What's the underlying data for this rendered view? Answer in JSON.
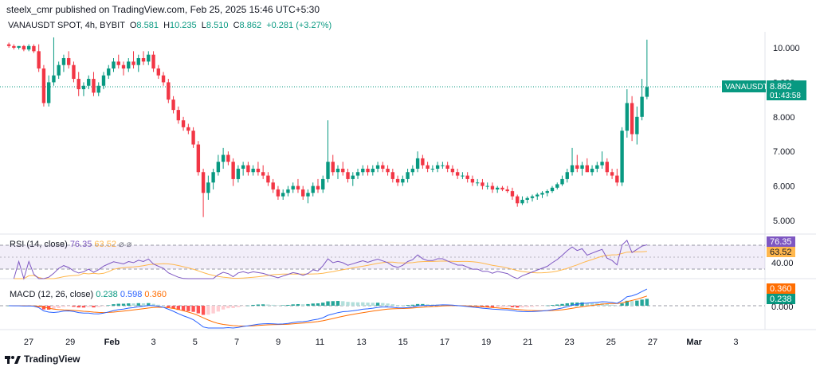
{
  "header": {
    "published": "steelx_cmr published on TradingView.com, Feb 25, 2025 15:46 UTC+5:30"
  },
  "legend": {
    "symbol": "VANAUSDT SPOT, 4h, BYBIT",
    "o_label": "O",
    "o": "8.581",
    "h_label": "H",
    "h": "10.235",
    "l_label": "L",
    "l": "8.510",
    "c_label": "C",
    "c": "8.862",
    "change": "+0.281 (+3.27%)"
  },
  "price_tag": {
    "symbol": "VANAUSDT",
    "price": "8.862",
    "countdown": "01:43:58"
  },
  "rsi": {
    "label": "RSI (14, close)",
    "value": "76.35",
    "ma": "63.52",
    "level_label": "40.00",
    "settings_glyph": "⌀ ⌀"
  },
  "macd": {
    "label": "MACD (12, 26, close)",
    "hist": "0.238",
    "macd": "0.598",
    "signal": "0.360",
    "zero_label": "0.000"
  },
  "footer": {
    "brand": "TradingView",
    "logo_icon": "tradingview-logo"
  },
  "colors": {
    "up": "#089981",
    "down": "#f23645",
    "rsi": "#7e57c2",
    "rsi_ma": "#ffb74d",
    "macd": "#2962ff",
    "signal": "#ff6d00"
  },
  "chart_data": {
    "type": "candlestick",
    "timeframe": "4h",
    "y_axis_ticks": [
      "10.000",
      "9.000",
      "8.000",
      "7.000",
      "6.000",
      "5.000"
    ],
    "y_range": [
      4.7,
      10.5
    ],
    "x_axis_ticks": [
      "27",
      "29",
      "Feb",
      "3",
      "5",
      "7",
      "9",
      "11",
      "13",
      "15",
      "17",
      "19",
      "21",
      "23",
      "25",
      "27",
      "Mar",
      "3"
    ],
    "candles": [
      [
        10.1,
        10.15,
        10.0,
        10.05
      ],
      [
        10.05,
        10.1,
        9.95,
        10.0
      ],
      [
        10.0,
        10.05,
        9.95,
        10.05
      ],
      [
        10.05,
        10.08,
        9.9,
        9.95
      ],
      [
        9.95,
        10.1,
        9.9,
        10.05
      ],
      [
        10.05,
        10.1,
        9.85,
        9.9
      ],
      [
        9.9,
        10.1,
        9.3,
        9.4
      ],
      [
        9.4,
        9.5,
        8.3,
        8.4
      ],
      [
        8.4,
        9.2,
        8.3,
        9.0
      ],
      [
        9.0,
        10.3,
        8.9,
        9.2
      ],
      [
        9.2,
        9.6,
        9.1,
        9.5
      ],
      [
        9.5,
        9.8,
        9.3,
        9.7
      ],
      [
        9.7,
        9.9,
        9.4,
        9.5
      ],
      [
        9.5,
        9.6,
        9.0,
        9.1
      ],
      [
        9.1,
        9.3,
        8.6,
        8.8
      ],
      [
        8.8,
        9.0,
        8.6,
        8.9
      ],
      [
        8.9,
        9.2,
        8.8,
        9.1
      ],
      [
        9.1,
        9.3,
        8.6,
        8.7
      ],
      [
        8.7,
        9.0,
        8.6,
        8.9
      ],
      [
        8.9,
        9.3,
        8.8,
        9.2
      ],
      [
        9.2,
        9.5,
        9.1,
        9.4
      ],
      [
        9.4,
        9.7,
        9.3,
        9.6
      ],
      [
        9.6,
        9.8,
        9.4,
        9.5
      ],
      [
        9.5,
        9.6,
        9.2,
        9.4
      ],
      [
        9.4,
        9.7,
        9.3,
        9.6
      ],
      [
        9.6,
        9.9,
        9.4,
        9.5
      ],
      [
        9.5,
        9.8,
        9.3,
        9.7
      ],
      [
        9.7,
        9.9,
        9.5,
        9.6
      ],
      [
        9.6,
        9.9,
        9.5,
        9.8
      ],
      [
        9.8,
        9.9,
        9.3,
        9.4
      ],
      [
        9.4,
        9.5,
        9.1,
        9.2
      ],
      [
        9.2,
        9.3,
        8.9,
        9.0
      ],
      [
        9.0,
        9.1,
        8.4,
        8.5
      ],
      [
        8.5,
        8.6,
        8.1,
        8.2
      ],
      [
        8.2,
        8.3,
        7.8,
        7.9
      ],
      [
        7.9,
        8.0,
        7.6,
        7.7
      ],
      [
        7.7,
        7.8,
        7.5,
        7.6
      ],
      [
        7.6,
        7.7,
        7.1,
        7.2
      ],
      [
        7.2,
        7.3,
        6.3,
        6.4
      ],
      [
        6.4,
        6.5,
        5.1,
        5.8
      ],
      [
        5.8,
        6.3,
        5.6,
        6.1
      ],
      [
        6.1,
        6.5,
        5.9,
        6.4
      ],
      [
        6.4,
        6.9,
        6.3,
        6.7
      ],
      [
        6.7,
        7.1,
        6.5,
        6.9
      ],
      [
        6.9,
        7.0,
        6.6,
        6.7
      ],
      [
        6.7,
        6.8,
        6.0,
        6.2
      ],
      [
        6.2,
        6.6,
        6.1,
        6.5
      ],
      [
        6.5,
        6.7,
        6.3,
        6.6
      ],
      [
        6.6,
        6.7,
        6.3,
        6.4
      ],
      [
        6.4,
        6.6,
        6.3,
        6.5
      ],
      [
        6.5,
        6.7,
        6.3,
        6.4
      ],
      [
        6.4,
        6.6,
        6.2,
        6.3
      ],
      [
        6.3,
        6.4,
        6.0,
        6.1
      ],
      [
        6.1,
        6.2,
        5.8,
        5.9
      ],
      [
        5.9,
        6.0,
        5.6,
        5.7
      ],
      [
        5.7,
        5.9,
        5.6,
        5.8
      ],
      [
        5.8,
        6.0,
        5.7,
        5.9
      ],
      [
        5.9,
        6.1,
        5.8,
        6.0
      ],
      [
        6.0,
        6.2,
        5.8,
        5.9
      ],
      [
        5.9,
        6.0,
        5.6,
        5.7
      ],
      [
        5.7,
        5.9,
        5.5,
        5.8
      ],
      [
        5.8,
        6.1,
        5.7,
        6.0
      ],
      [
        6.0,
        6.2,
        5.8,
        5.9
      ],
      [
        5.9,
        6.3,
        5.8,
        6.2
      ],
      [
        6.2,
        7.9,
        6.1,
        6.7
      ],
      [
        6.7,
        6.9,
        6.3,
        6.4
      ],
      [
        6.4,
        6.6,
        6.2,
        6.5
      ],
      [
        6.5,
        6.7,
        6.3,
        6.4
      ],
      [
        6.4,
        6.5,
        6.1,
        6.2
      ],
      [
        6.2,
        6.4,
        6.0,
        6.3
      ],
      [
        6.3,
        6.5,
        6.2,
        6.4
      ],
      [
        6.4,
        6.6,
        6.3,
        6.5
      ],
      [
        6.5,
        6.6,
        6.3,
        6.4
      ],
      [
        6.4,
        6.6,
        6.3,
        6.5
      ],
      [
        6.5,
        6.7,
        6.4,
        6.6
      ],
      [
        6.6,
        6.7,
        6.4,
        6.5
      ],
      [
        6.5,
        6.6,
        6.3,
        6.4
      ],
      [
        6.4,
        6.5,
        6.1,
        6.2
      ],
      [
        6.2,
        6.3,
        6.0,
        6.1
      ],
      [
        6.1,
        6.3,
        6.0,
        6.2
      ],
      [
        6.2,
        6.5,
        6.1,
        6.4
      ],
      [
        6.4,
        6.6,
        6.3,
        6.5
      ],
      [
        6.5,
        7.0,
        6.4,
        6.8
      ],
      [
        6.8,
        6.9,
        6.5,
        6.6
      ],
      [
        6.6,
        6.7,
        6.4,
        6.5
      ],
      [
        6.5,
        6.6,
        6.4,
        6.5
      ],
      [
        6.5,
        6.7,
        6.4,
        6.6
      ],
      [
        6.6,
        6.7,
        6.5,
        6.6
      ],
      [
        6.6,
        6.7,
        6.4,
        6.5
      ],
      [
        6.5,
        6.6,
        6.3,
        6.4
      ],
      [
        6.4,
        6.5,
        6.2,
        6.3
      ],
      [
        6.3,
        6.4,
        6.2,
        6.3
      ],
      [
        6.3,
        6.4,
        6.1,
        6.2
      ],
      [
        6.2,
        6.3,
        6.0,
        6.1
      ],
      [
        6.1,
        6.2,
        6.0,
        6.1
      ],
      [
        6.1,
        6.2,
        5.9,
        6.0
      ],
      [
        6.0,
        6.1,
        5.9,
        6.0
      ],
      [
        6.0,
        6.1,
        5.8,
        5.9
      ],
      [
        5.9,
        6.0,
        5.8,
        5.95
      ],
      [
        5.95,
        6.0,
        5.85,
        5.9
      ],
      [
        5.9,
        6.0,
        5.8,
        5.85
      ],
      [
        5.85,
        5.95,
        5.6,
        5.7
      ],
      [
        5.7,
        5.75,
        5.4,
        5.5
      ],
      [
        5.5,
        5.7,
        5.45,
        5.6
      ],
      [
        5.6,
        5.7,
        5.5,
        5.65
      ],
      [
        5.65,
        5.75,
        5.55,
        5.7
      ],
      [
        5.7,
        5.8,
        5.6,
        5.75
      ],
      [
        5.75,
        5.85,
        5.65,
        5.8
      ],
      [
        5.8,
        5.9,
        5.7,
        5.85
      ],
      [
        5.85,
        6.0,
        5.8,
        5.95
      ],
      [
        5.95,
        6.1,
        5.9,
        6.05
      ],
      [
        6.05,
        6.3,
        6.0,
        6.2
      ],
      [
        6.2,
        6.5,
        6.1,
        6.4
      ],
      [
        6.4,
        7.1,
        6.3,
        6.6
      ],
      [
        6.6,
        6.9,
        6.4,
        6.5
      ],
      [
        6.5,
        6.7,
        6.3,
        6.6
      ],
      [
        6.6,
        6.8,
        6.4,
        6.4
      ],
      [
        6.4,
        6.6,
        6.3,
        6.5
      ],
      [
        6.5,
        6.7,
        6.4,
        6.6
      ],
      [
        6.6,
        7.0,
        6.5,
        6.7
      ],
      [
        6.7,
        6.8,
        6.3,
        6.4
      ],
      [
        6.4,
        6.5,
        6.2,
        6.3
      ],
      [
        6.3,
        6.5,
        6.0,
        6.1
      ],
      [
        6.1,
        7.7,
        6.0,
        7.6
      ],
      [
        7.6,
        8.8,
        7.4,
        8.4
      ],
      [
        8.4,
        8.6,
        7.3,
        7.5
      ],
      [
        7.5,
        8.3,
        7.2,
        8.0
      ],
      [
        8.0,
        9.1,
        7.9,
        8.581
      ],
      [
        8.581,
        10.235,
        8.51,
        8.862
      ]
    ],
    "rsi_axis": [
      "76.35",
      "63.52",
      "40.00"
    ],
    "macd_axis": [
      "0.360",
      "0.238",
      "0.000"
    ]
  }
}
